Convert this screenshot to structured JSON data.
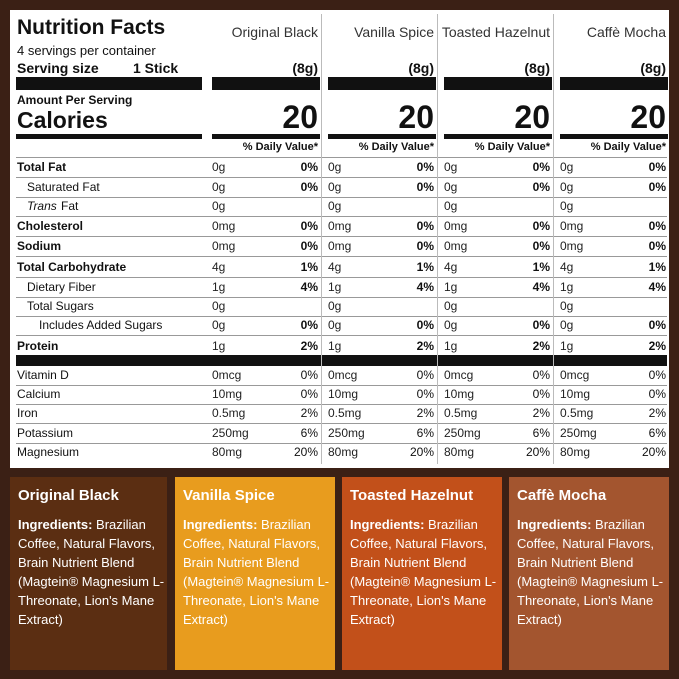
{
  "header": {
    "title": "Nutrition Facts",
    "servings": "4 servings per container",
    "serving_size_label": "Serving size",
    "serving_size_value": "1 Stick",
    "amount_per_serving": "Amount Per Serving",
    "calories_label": "Calories"
  },
  "rows": [
    {
      "label": "Total Fat",
      "style": "bold"
    },
    {
      "label": "Saturated Fat",
      "style": "indent"
    },
    {
      "label_italic": "Trans",
      "label": "Fat",
      "style": "indent"
    },
    {
      "label": "Cholesterol",
      "style": "bold"
    },
    {
      "label": "Sodium",
      "style": "bold"
    },
    {
      "label": "Total Carbohydrate",
      "style": "bold"
    },
    {
      "label": "Dietary Fiber",
      "style": "indent"
    },
    {
      "label": "Total Sugars",
      "style": "indent"
    },
    {
      "label": "Includes Added Sugars",
      "style": "indent2"
    },
    {
      "label": "Protein",
      "style": "bold"
    },
    {
      "label": "Vitamin D",
      "style": "minor"
    },
    {
      "label": "Calcium",
      "style": "minor"
    },
    {
      "label": "Iron",
      "style": "minor"
    },
    {
      "label": "Potassium",
      "style": "minor"
    },
    {
      "label": "Magnesium",
      "style": "minor"
    }
  ],
  "products": [
    {
      "name": "Original Black",
      "serving": "(8g)",
      "calories": 20,
      "dv_header": "% Daily Value*",
      "values": [
        {
          "amount": "0g",
          "dv": "0%"
        },
        {
          "amount": "0g",
          "dv": "0%"
        },
        {
          "amount": "0g"
        },
        {
          "amount": "0mg",
          "dv": "0%"
        },
        {
          "amount": "0mg",
          "dv": "0%"
        },
        {
          "amount": "4g",
          "dv": "1%"
        },
        {
          "amount": "1g",
          "dv": "4%"
        },
        {
          "amount": "0g"
        },
        {
          "amount": "0g",
          "dv": "0%"
        },
        {
          "amount": "1g",
          "dv": "2%"
        },
        {
          "amount": "0mcg",
          "dv": "0%"
        },
        {
          "amount": "10mg",
          "dv": "0%"
        },
        {
          "amount": "0.5mg",
          "dv": "2%"
        },
        {
          "amount": "250mg",
          "dv": "6%"
        },
        {
          "amount": "80mg",
          "dv": "20%"
        }
      ]
    },
    {
      "name": "Vanilla Spice",
      "serving": "(8g)",
      "calories": 20,
      "dv_header": "% Daily Value*",
      "values": [
        {
          "amount": "0g",
          "dv": "0%"
        },
        {
          "amount": "0g",
          "dv": "0%"
        },
        {
          "amount": "0g"
        },
        {
          "amount": "0mg",
          "dv": "0%"
        },
        {
          "amount": "0mg",
          "dv": "0%"
        },
        {
          "amount": "4g",
          "dv": "1%"
        },
        {
          "amount": "1g",
          "dv": "4%"
        },
        {
          "amount": "0g"
        },
        {
          "amount": "0g",
          "dv": "0%"
        },
        {
          "amount": "1g",
          "dv": "2%"
        },
        {
          "amount": "0mcg",
          "dv": "0%"
        },
        {
          "amount": "10mg",
          "dv": "0%"
        },
        {
          "amount": "0.5mg",
          "dv": "2%"
        },
        {
          "amount": "250mg",
          "dv": "6%"
        },
        {
          "amount": "80mg",
          "dv": "20%"
        }
      ]
    },
    {
      "name": "Toasted Hazelnut",
      "serving": "(8g)",
      "calories": 20,
      "dv_header": "% Daily Value*",
      "values": [
        {
          "amount": "0g",
          "dv": "0%"
        },
        {
          "amount": "0g",
          "dv": "0%"
        },
        {
          "amount": "0g"
        },
        {
          "amount": "0mg",
          "dv": "0%"
        },
        {
          "amount": "0mg",
          "dv": "0%"
        },
        {
          "amount": "4g",
          "dv": "1%"
        },
        {
          "amount": "1g",
          "dv": "4%"
        },
        {
          "amount": "0g"
        },
        {
          "amount": "0g",
          "dv": "0%"
        },
        {
          "amount": "1g",
          "dv": "2%"
        },
        {
          "amount": "0mcg",
          "dv": "0%"
        },
        {
          "amount": "10mg",
          "dv": "0%"
        },
        {
          "amount": "0.5mg",
          "dv": "2%"
        },
        {
          "amount": "250mg",
          "dv": "6%"
        },
        {
          "amount": "80mg",
          "dv": "20%"
        }
      ]
    },
    {
      "name": "Caffè Mocha",
      "serving": "(8g)",
      "calories": 20,
      "dv_header": "% Daily Value*",
      "values": [
        {
          "amount": "0g",
          "dv": "0%"
        },
        {
          "amount": "0g",
          "dv": "0%"
        },
        {
          "amount": "0g"
        },
        {
          "amount": "0mg",
          "dv": "0%"
        },
        {
          "amount": "0mg",
          "dv": "0%"
        },
        {
          "amount": "4g",
          "dv": "1%"
        },
        {
          "amount": "1g",
          "dv": "4%"
        },
        {
          "amount": "0g"
        },
        {
          "amount": "0g",
          "dv": "0%"
        },
        {
          "amount": "1g",
          "dv": "2%"
        },
        {
          "amount": "0mcg",
          "dv": "0%"
        },
        {
          "amount": "10mg",
          "dv": "0%"
        },
        {
          "amount": "0.5mg",
          "dv": "2%"
        },
        {
          "amount": "250mg",
          "dv": "6%"
        },
        {
          "amount": "80mg",
          "dv": "20%"
        }
      ]
    }
  ],
  "ingredients": [
    {
      "name": "Original Black",
      "color": "#5b2e12",
      "label": "Ingredients:",
      "text": "Brazilian Coffee, Natural Flavors, Brain Nutrient Blend (Magtein® Magnesium L-Threonate, Lion's Mane Extract)"
    },
    {
      "name": "Vanilla Spice",
      "color": "#e89c1e",
      "label": "Ingredients:",
      "text": "Brazilian Coffee, Natural Flavors, Brain Nutrient Blend (Magtein® Magnesium L-Threonate, Lion's Mane Extract)"
    },
    {
      "name": "Toasted Hazelnut",
      "color": "#c2501a",
      "label": "Ingredients:",
      "text": "Brazilian Coffee, Natural Flavors, Brain Nutrient Blend (Magtein® Magnesium L-Threonate, Lion's Mane Extract)"
    },
    {
      "name": "Caffè Mocha",
      "color": "#a3552f",
      "label": "Ingredients:",
      "text": "Brazilian Coffee, Natural Flavors, Brain Nutrient Blend (Magtein® Magnesium L-Threonate, Lion's Mane Extract)"
    }
  ]
}
